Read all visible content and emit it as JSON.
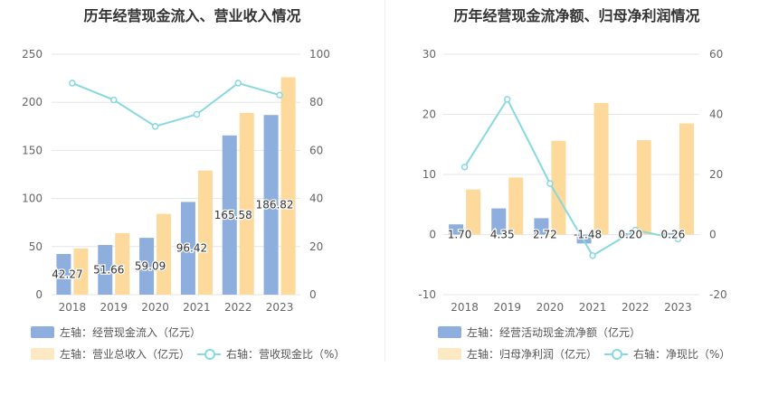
{
  "colors": {
    "bar_left": "#8eaedd",
    "bar_right": "#fdd99b",
    "line": "#88d8e0",
    "grid": "#e6e6e6",
    "axis_text": "#666666"
  },
  "chart_data": [
    {
      "type": "bar",
      "title": "历年经营现金流入、营业收入情况",
      "categories": [
        "2018",
        "2019",
        "2020",
        "2021",
        "2022",
        "2023"
      ],
      "left_axis": {
        "ylim": [
          0,
          250
        ],
        "ticks": [
          "0",
          "50",
          "100",
          "150",
          "200",
          "250"
        ]
      },
      "right_axis": {
        "ylim": [
          0,
          100
        ],
        "ticks": [
          "0",
          "20",
          "40",
          "60",
          "80",
          "100"
        ]
      },
      "series": [
        {
          "name": "左轴：经营现金流入（亿元）",
          "axis": "left",
          "type": "bar",
          "values": [
            42.27,
            51.66,
            59.09,
            96.42,
            165.58,
            186.82
          ],
          "labels": [
            "42.27",
            "51.66",
            "59.09",
            "96.42",
            "165.58",
            "186.82"
          ]
        },
        {
          "name": "左轴：营业总收入（亿元）",
          "axis": "left",
          "type": "bar",
          "values": [
            48,
            64,
            84,
            129,
            189,
            226
          ]
        },
        {
          "name": "右轴：营收现金比（%）",
          "axis": "right",
          "type": "line",
          "values": [
            88,
            81,
            70,
            75,
            88,
            83
          ]
        }
      ]
    },
    {
      "type": "bar",
      "title": "历年经营现金流净额、归母净利润情况",
      "categories": [
        "2018",
        "2019",
        "2020",
        "2021",
        "2022",
        "2023"
      ],
      "left_axis": {
        "ylim": [
          -10,
          30
        ],
        "ticks": [
          "-10",
          "0",
          "10",
          "20",
          "30"
        ]
      },
      "right_axis": {
        "ylim": [
          -20,
          60
        ],
        "ticks": [
          "-20",
          "0",
          "20",
          "40",
          "60"
        ]
      },
      "series": [
        {
          "name": "左轴：经营活动现金流净额（亿元）",
          "axis": "left",
          "type": "bar",
          "values": [
            1.7,
            4.35,
            2.72,
            -1.48,
            0.2,
            0.26
          ],
          "labels": [
            "1.70",
            "4.35",
            "2.72",
            "-1.48",
            "0.20",
            "0.26"
          ]
        },
        {
          "name": "左轴：归母净利润（亿元）",
          "axis": "left",
          "type": "bar",
          "values": [
            7.5,
            9.5,
            15.6,
            21.9,
            15.7,
            18.5
          ]
        },
        {
          "name": "右轴：净现比（%）",
          "axis": "right",
          "type": "line",
          "values": [
            22.5,
            45,
            17,
            -7,
            1.5,
            -1.5
          ]
        }
      ]
    }
  ]
}
